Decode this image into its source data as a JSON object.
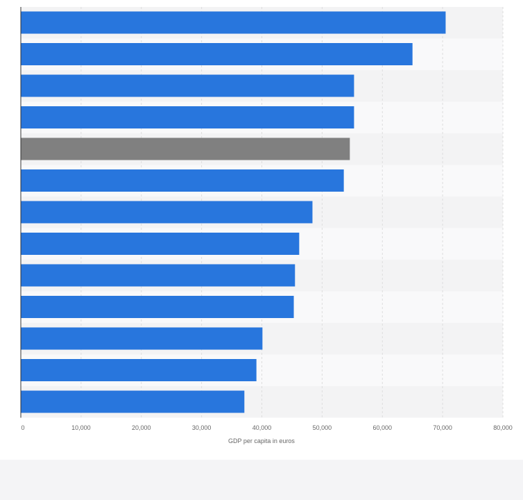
{
  "colors": {
    "bar": "#2876dd",
    "highlight": "#808080",
    "grid": "#dddddd",
    "axis": "#333333",
    "band_light": "#f9f9fa",
    "band_dark": "#f3f3f4"
  },
  "chart_data": {
    "type": "bar",
    "orientation": "horizontal",
    "xlabel": "GDP per capita in euros",
    "xlim": [
      0,
      80000
    ],
    "xticks": [
      0,
      10000,
      20000,
      30000,
      40000,
      50000,
      60000,
      70000,
      80000
    ],
    "xtick_labels": [
      "0",
      "10,000",
      "20,000",
      "30,000",
      "40,000",
      "50,000",
      "60,000",
      "70,000",
      "80,000"
    ],
    "grid": true,
    "series": [
      {
        "values": [
          70500,
          65000,
          55300,
          55300,
          54600,
          53600,
          48400,
          46200,
          45500,
          45300,
          40100,
          39100,
          37100
        ]
      }
    ],
    "highlighted_index": 4
  }
}
